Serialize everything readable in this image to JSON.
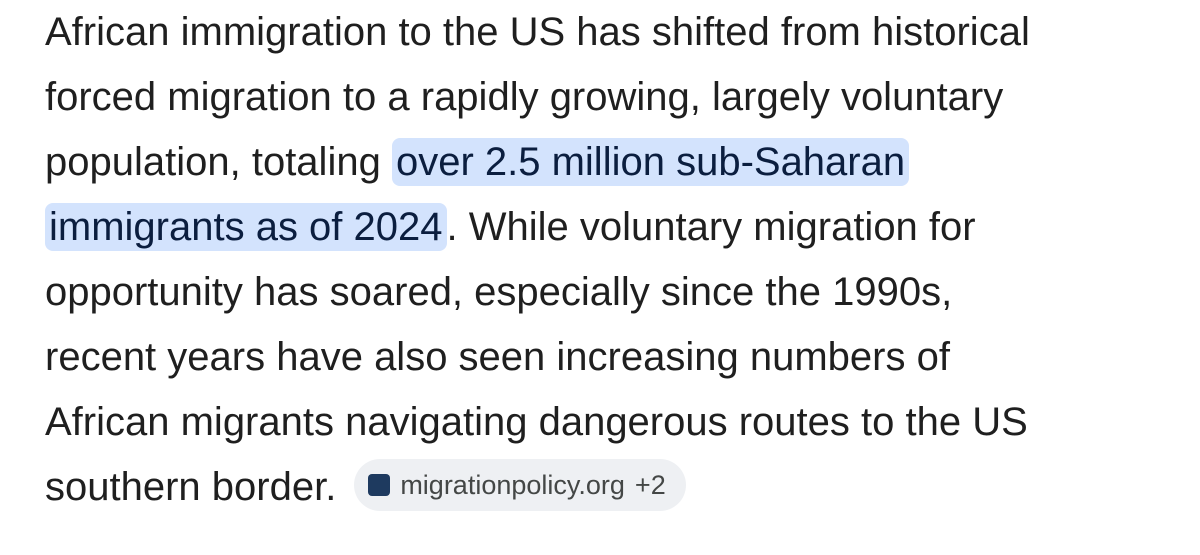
{
  "paragraph": {
    "lines_before": [
      "African immigration to the US has shifted from historical",
      "forced migration to a rapidly growing, largely voluntary",
      "population, totaling"
    ],
    "highlight": [
      "over 2.5 million sub-Saharan",
      "immigrants as of 2024"
    ],
    "lines_after": [
      ". While voluntary migration for",
      "opportunity has soared, especially since the 1990s,",
      "recent years have also seen increasing numbers of",
      "African migrants navigating dangerous routes to the US",
      "southern border."
    ]
  },
  "source": {
    "label": "migrationpolicy.org",
    "more": "+2"
  }
}
